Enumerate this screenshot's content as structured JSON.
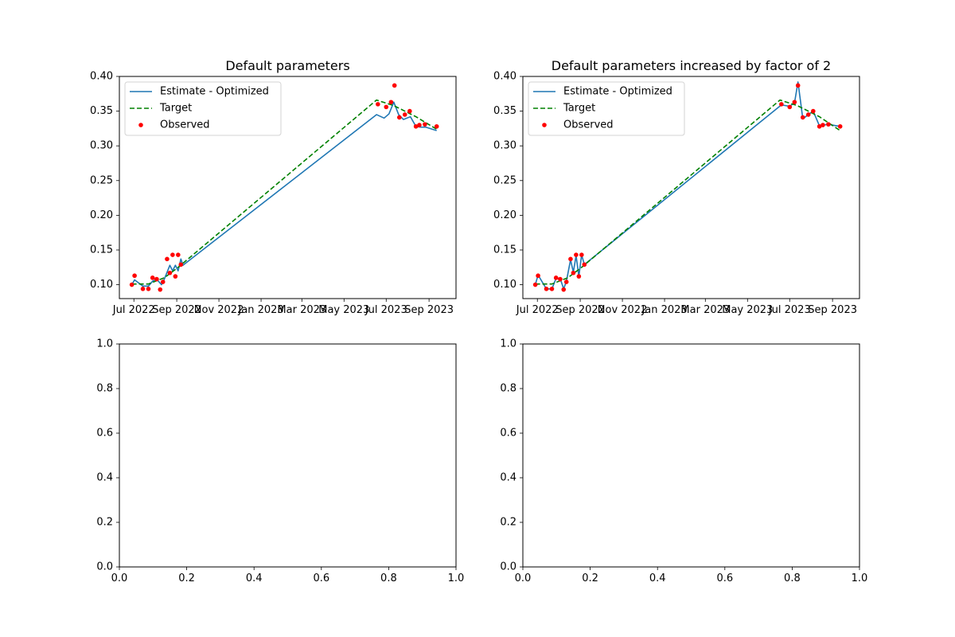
{
  "chart_data": [
    {
      "type": "line",
      "title": "Default parameters",
      "xlabel": "",
      "ylabel": "",
      "x_axis": "date",
      "xlim": [
        "2022-06-10",
        "2023-10-10"
      ],
      "ylim": [
        0.08,
        0.4
      ],
      "xticks": [
        {
          "date": "2022-07-01",
          "label": "Jul 2022"
        },
        {
          "date": "2022-09-01",
          "label": "Sep 2022"
        },
        {
          "date": "2022-11-01",
          "label": "Nov 2022"
        },
        {
          "date": "2023-01-01",
          "label": "Jan 2023"
        },
        {
          "date": "2023-03-01",
          "label": "Mar 2023"
        },
        {
          "date": "2023-05-01",
          "label": "May 2023"
        },
        {
          "date": "2023-07-01",
          "label": "Jul 2023"
        },
        {
          "date": "2023-09-01",
          "label": "Sep 2023"
        }
      ],
      "yticks": [
        {
          "value": 0.1,
          "label": "0.10"
        },
        {
          "value": 0.15,
          "label": "0.15"
        },
        {
          "value": 0.2,
          "label": "0.20"
        },
        {
          "value": 0.25,
          "label": "0.25"
        },
        {
          "value": 0.3,
          "label": "0.30"
        },
        {
          "value": 0.35,
          "label": "0.35"
        },
        {
          "value": 0.4,
          "label": "0.40"
        }
      ],
      "grid": false,
      "legend": "upper-left",
      "series": [
        {
          "name": "Estimate - Optimized",
          "color": "#1f77b4",
          "style": "solid",
          "points": [
            [
              "2022-06-28",
              0.1
            ],
            [
              "2022-07-02",
              0.107
            ],
            [
              "2022-07-14",
              0.098
            ],
            [
              "2022-07-22",
              0.098
            ],
            [
              "2022-07-28",
              0.105
            ],
            [
              "2022-08-03",
              0.108
            ],
            [
              "2022-08-10",
              0.1
            ],
            [
              "2022-08-14",
              0.108
            ],
            [
              "2022-08-22",
              0.128
            ],
            [
              "2022-08-26",
              0.12
            ],
            [
              "2022-08-30",
              0.128
            ],
            [
              "2022-09-03",
              0.12
            ],
            [
              "2022-09-07",
              0.137
            ],
            [
              "2022-09-10",
              0.128
            ],
            [
              "2023-06-17",
              0.345
            ],
            [
              "2023-06-28",
              0.34
            ],
            [
              "2023-07-05",
              0.346
            ],
            [
              "2023-07-12",
              0.363
            ],
            [
              "2023-07-19",
              0.345
            ],
            [
              "2023-07-26",
              0.338
            ],
            [
              "2023-08-05",
              0.342
            ],
            [
              "2023-08-13",
              0.328
            ],
            [
              "2023-08-20",
              0.327
            ],
            [
              "2023-08-27",
              0.327
            ],
            [
              "2023-09-12",
              0.322
            ]
          ]
        },
        {
          "name": "Target",
          "color": "#008000",
          "style": "dashed",
          "points": [
            [
              "2022-06-28",
              0.101
            ],
            [
              "2022-07-22",
              0.101
            ],
            [
              "2022-08-14",
              0.11
            ],
            [
              "2022-09-03",
              0.125
            ],
            [
              "2023-06-17",
              0.366
            ],
            [
              "2023-07-12",
              0.358
            ],
            [
              "2023-08-13",
              0.342
            ],
            [
              "2023-09-12",
              0.324
            ]
          ]
        }
      ],
      "scatter": {
        "name": "Observed",
        "color": "#ff0000",
        "points": [
          [
            "2022-06-28",
            0.1
          ],
          [
            "2022-07-02",
            0.113
          ],
          [
            "2022-07-14",
            0.094
          ],
          [
            "2022-07-22",
            0.094
          ],
          [
            "2022-07-28",
            0.11
          ],
          [
            "2022-08-03",
            0.108
          ],
          [
            "2022-08-08",
            0.093
          ],
          [
            "2022-08-12",
            0.104
          ],
          [
            "2022-08-18",
            0.137
          ],
          [
            "2022-08-22",
            0.117
          ],
          [
            "2022-08-26",
            0.143
          ],
          [
            "2022-08-30",
            0.112
          ],
          [
            "2022-09-03",
            0.143
          ],
          [
            "2022-09-07",
            0.129
          ],
          [
            "2023-06-19",
            0.36
          ],
          [
            "2023-07-01",
            0.356
          ],
          [
            "2023-07-08",
            0.363
          ],
          [
            "2023-07-13",
            0.387
          ],
          [
            "2023-07-20",
            0.341
          ],
          [
            "2023-07-28",
            0.345
          ],
          [
            "2023-08-04",
            0.35
          ],
          [
            "2023-08-13",
            0.328
          ],
          [
            "2023-08-18",
            0.33
          ],
          [
            "2023-08-26",
            0.331
          ],
          [
            "2023-09-12",
            0.328
          ]
        ]
      }
    },
    {
      "type": "line",
      "title": "Default parameters increased by factor of 2",
      "xlabel": "",
      "ylabel": "",
      "x_axis": "date",
      "xlim": [
        "2022-06-10",
        "2023-10-10"
      ],
      "ylim": [
        0.08,
        0.4
      ],
      "xticks": [
        {
          "date": "2022-07-01",
          "label": "Jul 2022"
        },
        {
          "date": "2022-09-01",
          "label": "Sep 2022"
        },
        {
          "date": "2022-11-01",
          "label": "Nov 2022"
        },
        {
          "date": "2023-01-01",
          "label": "Jan 2023"
        },
        {
          "date": "2023-03-01",
          "label": "Mar 2023"
        },
        {
          "date": "2023-05-01",
          "label": "May 2023"
        },
        {
          "date": "2023-07-01",
          "label": "Jul 2023"
        },
        {
          "date": "2023-09-01",
          "label": "Sep 2023"
        }
      ],
      "yticks": [
        {
          "value": 0.1,
          "label": "0.10"
        },
        {
          "value": 0.15,
          "label": "0.15"
        },
        {
          "value": 0.2,
          "label": "0.20"
        },
        {
          "value": 0.25,
          "label": "0.25"
        },
        {
          "value": 0.3,
          "label": "0.30"
        },
        {
          "value": 0.35,
          "label": "0.35"
        },
        {
          "value": 0.4,
          "label": "0.40"
        }
      ],
      "grid": false,
      "legend": "upper-left",
      "series": [
        {
          "name": "Estimate - Optimized",
          "color": "#1f77b4",
          "style": "solid",
          "points": [
            [
              "2022-06-28",
              0.1
            ],
            [
              "2022-07-02",
              0.114
            ],
            [
              "2022-07-14",
              0.094
            ],
            [
              "2022-07-22",
              0.094
            ],
            [
              "2022-07-28",
              0.109
            ],
            [
              "2022-08-03",
              0.109
            ],
            [
              "2022-08-08",
              0.094
            ],
            [
              "2022-08-12",
              0.105
            ],
            [
              "2022-08-18",
              0.136
            ],
            [
              "2022-08-22",
              0.118
            ],
            [
              "2022-08-26",
              0.142
            ],
            [
              "2022-08-30",
              0.112
            ],
            [
              "2022-09-03",
              0.143
            ],
            [
              "2022-09-07",
              0.129
            ],
            [
              "2023-06-19",
              0.359
            ],
            [
              "2023-07-01",
              0.357
            ],
            [
              "2023-07-08",
              0.362
            ],
            [
              "2023-07-13",
              0.392
            ],
            [
              "2023-07-20",
              0.339
            ],
            [
              "2023-07-28",
              0.345
            ],
            [
              "2023-08-04",
              0.35
            ],
            [
              "2023-08-13",
              0.329
            ],
            [
              "2023-08-18",
              0.33
            ],
            [
              "2023-08-26",
              0.331
            ],
            [
              "2023-09-12",
              0.328
            ]
          ]
        },
        {
          "name": "Target",
          "color": "#008000",
          "style": "dashed",
          "points": [
            [
              "2022-06-28",
              0.101
            ],
            [
              "2022-07-22",
              0.101
            ],
            [
              "2022-08-14",
              0.11
            ],
            [
              "2022-09-03",
              0.125
            ],
            [
              "2023-06-17",
              0.366
            ],
            [
              "2023-07-12",
              0.358
            ],
            [
              "2023-08-13",
              0.342
            ],
            [
              "2023-09-12",
              0.322
            ]
          ]
        }
      ],
      "scatter": {
        "name": "Observed",
        "color": "#ff0000",
        "points": [
          [
            "2022-06-28",
            0.1
          ],
          [
            "2022-07-02",
            0.113
          ],
          [
            "2022-07-14",
            0.094
          ],
          [
            "2022-07-22",
            0.094
          ],
          [
            "2022-07-28",
            0.11
          ],
          [
            "2022-08-03",
            0.108
          ],
          [
            "2022-08-08",
            0.093
          ],
          [
            "2022-08-12",
            0.104
          ],
          [
            "2022-08-18",
            0.137
          ],
          [
            "2022-08-22",
            0.117
          ],
          [
            "2022-08-26",
            0.143
          ],
          [
            "2022-08-30",
            0.112
          ],
          [
            "2022-09-03",
            0.143
          ],
          [
            "2022-09-07",
            0.129
          ],
          [
            "2023-06-19",
            0.36
          ],
          [
            "2023-07-01",
            0.356
          ],
          [
            "2023-07-08",
            0.363
          ],
          [
            "2023-07-13",
            0.387
          ],
          [
            "2023-07-20",
            0.341
          ],
          [
            "2023-07-28",
            0.345
          ],
          [
            "2023-08-04",
            0.35
          ],
          [
            "2023-08-13",
            0.328
          ],
          [
            "2023-08-18",
            0.33
          ],
          [
            "2023-08-26",
            0.331
          ],
          [
            "2023-09-12",
            0.328
          ]
        ]
      }
    },
    {
      "type": "line",
      "title": "",
      "xlabel": "",
      "ylabel": "",
      "xlim": [
        0,
        1
      ],
      "ylim": [
        0,
        1
      ],
      "xticks": [
        {
          "value": 0,
          "label": "0.0"
        },
        {
          "value": 0.2,
          "label": "0.2"
        },
        {
          "value": 0.4,
          "label": "0.4"
        },
        {
          "value": 0.6,
          "label": "0.6"
        },
        {
          "value": 0.8,
          "label": "0.8"
        },
        {
          "value": 1,
          "label": "1.0"
        }
      ],
      "yticks": [
        {
          "value": 0,
          "label": "0.0"
        },
        {
          "value": 0.2,
          "label": "0.2"
        },
        {
          "value": 0.4,
          "label": "0.4"
        },
        {
          "value": 0.6,
          "label": "0.6"
        },
        {
          "value": 0.8,
          "label": "0.8"
        },
        {
          "value": 1,
          "label": "1.0"
        }
      ],
      "grid": false,
      "series": []
    },
    {
      "type": "line",
      "title": "",
      "xlabel": "",
      "ylabel": "",
      "xlim": [
        0,
        1
      ],
      "ylim": [
        0,
        1
      ],
      "xticks": [
        {
          "value": 0,
          "label": "0.0"
        },
        {
          "value": 0.2,
          "label": "0.2"
        },
        {
          "value": 0.4,
          "label": "0.4"
        },
        {
          "value": 0.6,
          "label": "0.6"
        },
        {
          "value": 0.8,
          "label": "0.8"
        },
        {
          "value": 1,
          "label": "1.0"
        }
      ],
      "yticks": [
        {
          "value": 0,
          "label": "0.0"
        },
        {
          "value": 0.2,
          "label": "0.2"
        },
        {
          "value": 0.4,
          "label": "0.4"
        },
        {
          "value": 0.6,
          "label": "0.6"
        },
        {
          "value": 0.8,
          "label": "0.8"
        },
        {
          "value": 1,
          "label": "1.0"
        }
      ],
      "grid": false,
      "series": []
    }
  ]
}
